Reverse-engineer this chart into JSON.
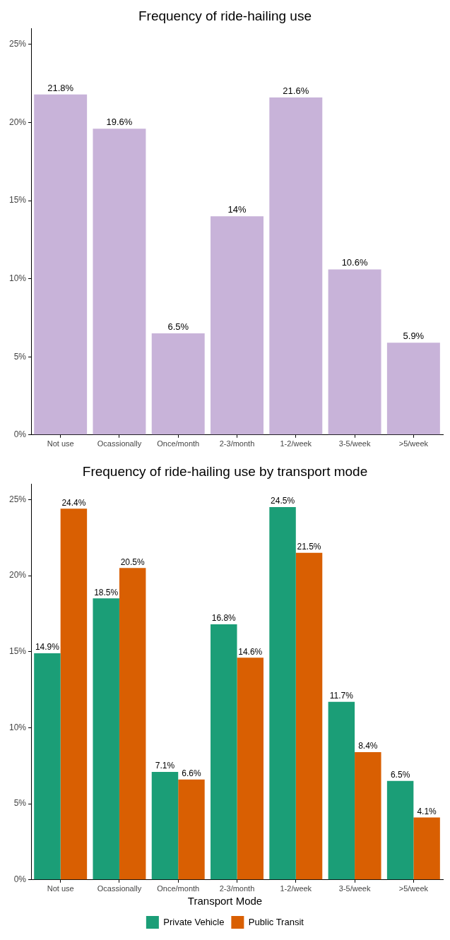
{
  "chart_data": [
    {
      "type": "bar",
      "title": "Frequency of ride-hailing use",
      "categories": [
        "Not use",
        "Ocassionally",
        "Once/month",
        "2-3/month",
        "1-2/week",
        "3-5/week",
        ">5/week"
      ],
      "values": [
        21.8,
        19.6,
        6.5,
        14,
        21.6,
        10.6,
        5.9
      ],
      "color": "#c8b3d9",
      "value_labels": [
        "21.8%",
        "19.6%",
        "6.5%",
        "14%",
        "21.6%",
        "10.6%",
        "5.9%"
      ],
      "ylim": [
        0,
        26
      ],
      "yticks": [
        {
          "value": 0,
          "label": "0%"
        },
        {
          "value": 5,
          "label": "5%"
        },
        {
          "value": 10,
          "label": "10%"
        },
        {
          "value": 15,
          "label": "15%"
        },
        {
          "value": 20,
          "label": "20%"
        },
        {
          "value": 25,
          "label": "25%"
        }
      ]
    },
    {
      "type": "bar",
      "title": "Frequency of ride-hailing use by transport mode",
      "categories": [
        "Not use",
        "Ocassionally",
        "Once/month",
        "2-3/month",
        "1-2/week",
        "3-5/week",
        ">5/week"
      ],
      "series": [
        {
          "name": "Private Vehicle",
          "color": "#1b9e77",
          "values": [
            14.9,
            18.5,
            7.1,
            16.8,
            24.5,
            11.7,
            6.5
          ],
          "value_labels": [
            "14.9%",
            "18.5%",
            "7.1%",
            "16.8%",
            "24.5%",
            "11.7%",
            "6.5%"
          ]
        },
        {
          "name": "Public Transit",
          "color": "#d95f02",
          "values": [
            24.4,
            20.5,
            6.6,
            14.6,
            21.5,
            8.4,
            4.1
          ],
          "value_labels": [
            "24.4%",
            "20.5%",
            "6.6%",
            "14.6%",
            "21.5%",
            "8.4%",
            "4.1%"
          ]
        }
      ],
      "ylim": [
        0,
        26
      ],
      "yticks": [
        {
          "value": 0,
          "label": "0%"
        },
        {
          "value": 5,
          "label": "5%"
        },
        {
          "value": 10,
          "label": "10%"
        },
        {
          "value": 15,
          "label": "15%"
        },
        {
          "value": 20,
          "label": "20%"
        },
        {
          "value": 25,
          "label": "25%"
        }
      ],
      "legend": "bottom",
      "legend_title": "Transport Mode"
    }
  ]
}
